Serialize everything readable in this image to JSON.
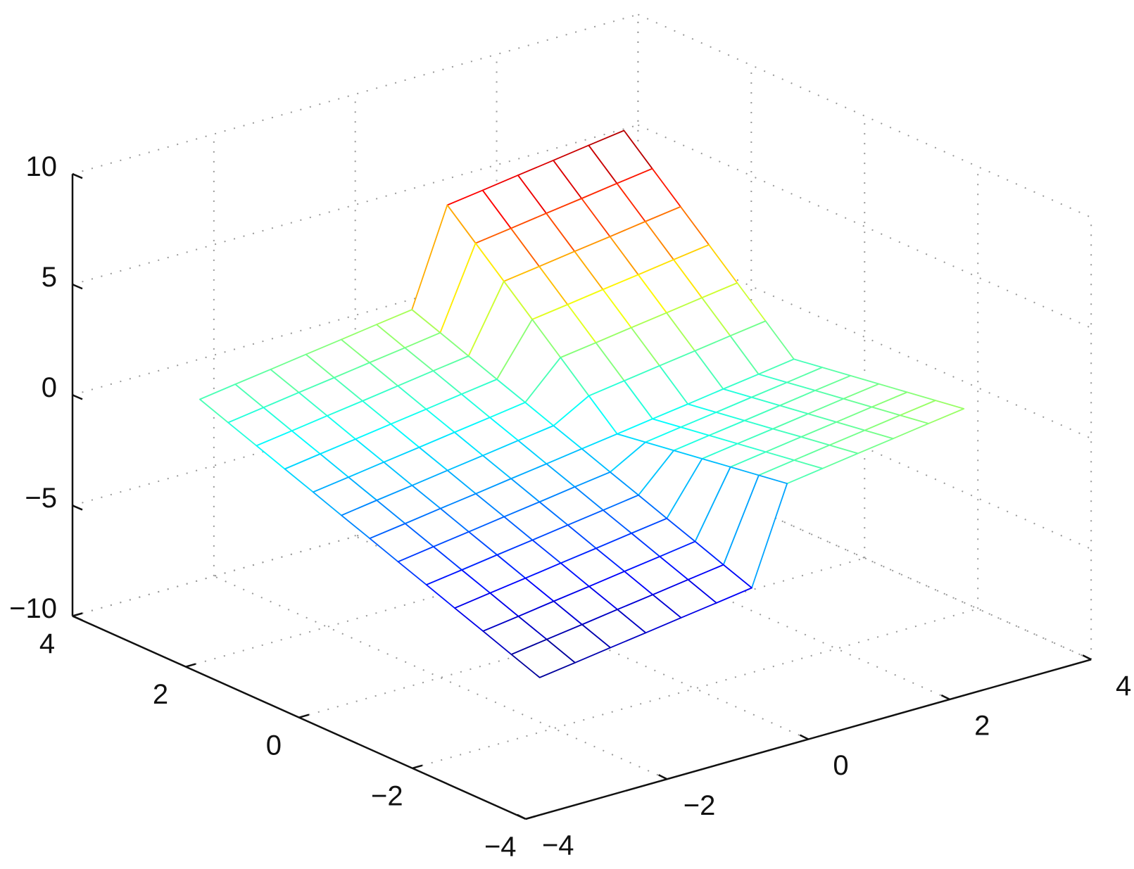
{
  "chart_data": {
    "type": "mesh",
    "colormap": "jet",
    "grid": true,
    "x": [
      -3,
      -2.5,
      -2,
      -1.5,
      -1,
      -0.5,
      0,
      0.5,
      1,
      1.5,
      2,
      2.5,
      3
    ],
    "y": [
      -3,
      -2.5,
      -2,
      -1.5,
      -1,
      -0.5,
      0,
      0.5,
      1,
      1.5,
      2,
      2.5,
      3
    ],
    "z": [
      [
        -5.65,
        -5.43,
        -5.2,
        -4.98,
        -4.75,
        -4.53,
        -4.3,
        -0.03,
        0.2,
        0.43,
        0.65,
        0.88,
        1.1
      ],
      [
        -5.18,
        -4.95,
        -4.73,
        -4.5,
        -4.28,
        -4.05,
        -3.83,
        -0.23,
        0,
        0.23,
        0.45,
        0.68,
        0.9
      ],
      [
        -4.7,
        -4.48,
        -4.25,
        -4.03,
        -3.8,
        -3.58,
        -3.35,
        -0.43,
        -0.2,
        0.03,
        0.25,
        0.48,
        0.7
      ],
      [
        -4.23,
        -4.0,
        -3.78,
        -3.55,
        -3.33,
        -3.1,
        -2.88,
        -0.63,
        -0.4,
        -0.18,
        0.05,
        0.28,
        0.5
      ],
      [
        -3.75,
        -3.53,
        -3.3,
        -3.08,
        -2.85,
        -2.63,
        -2.4,
        -0.83,
        -0.6,
        -0.38,
        -0.15,
        0.08,
        0.3
      ],
      [
        -3.28,
        -3.05,
        -2.83,
        -2.6,
        -2.38,
        -2.15,
        -1.93,
        -1.03,
        -0.8,
        -0.58,
        -0.35,
        -0.13,
        0.1
      ],
      [
        -2.8,
        -2.58,
        -2.35,
        -2.13,
        -1.9,
        -1.68,
        -1.45,
        -1.23,
        -1.0,
        -0.78,
        -0.55,
        -0.33,
        -0.1
      ],
      [
        -2.33,
        -2.1,
        -1.88,
        -1.65,
        -1.43,
        -1.2,
        -0.98,
        -0.08,
        0.15,
        0.38,
        0.6,
        0.83,
        1.05
      ],
      [
        -1.85,
        -1.63,
        -1.4,
        -1.18,
        -0.95,
        -0.73,
        -0.5,
        1.08,
        1.3,
        1.53,
        1.75,
        1.98,
        2.2
      ],
      [
        -1.38,
        -1.15,
        -0.93,
        -0.7,
        -0.48,
        -0.25,
        -0.03,
        2.23,
        2.45,
        2.68,
        2.9,
        3.13,
        3.35
      ],
      [
        -0.9,
        -0.68,
        -0.45,
        -0.23,
        0,
        0.23,
        0.45,
        3.38,
        3.6,
        3.83,
        4.05,
        4.28,
        4.5
      ],
      [
        -0.43,
        -0.2,
        0.03,
        0.25,
        0.48,
        0.7,
        0.93,
        4.53,
        4.75,
        4.98,
        5.2,
        5.43,
        5.65
      ],
      [
        0.05,
        0.28,
        0.5,
        0.73,
        0.95,
        1.18,
        1.4,
        5.68,
        5.9,
        6.13,
        6.35,
        6.58,
        6.8
      ]
    ],
    "xlim": [
      -4,
      4
    ],
    "ylim": [
      -4,
      4
    ],
    "zlim": [
      -10,
      10
    ],
    "xticks": [
      {
        "value": -4,
        "label": "−4"
      },
      {
        "value": -2,
        "label": "−2"
      },
      0,
      2,
      4
    ],
    "yticks": [
      {
        "value": -4,
        "label": "−4"
      },
      {
        "value": -2,
        "label": "−2"
      },
      0,
      2,
      4
    ],
    "zticks": [
      {
        "value": -10,
        "label": "−10"
      },
      {
        "value": -5,
        "label": "−5"
      },
      0,
      5,
      10
    ]
  }
}
